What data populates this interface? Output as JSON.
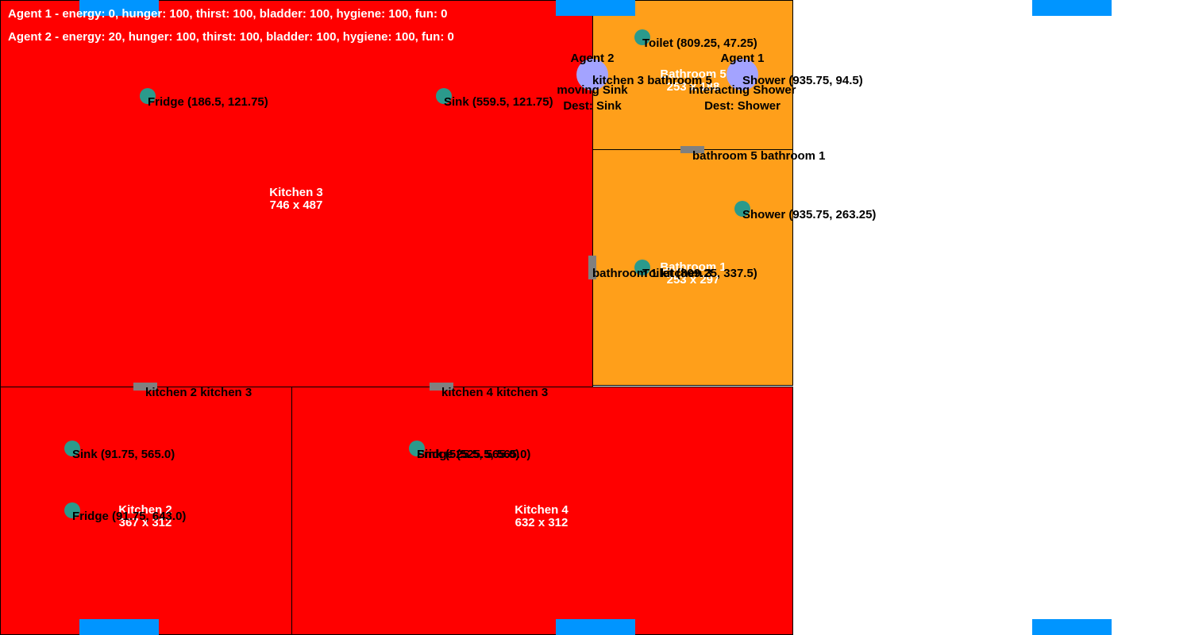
{
  "colors": {
    "kitchen": "#ff0000",
    "bathroom": "#ff9f1a",
    "object": "#2b9a8c",
    "door": "#808080",
    "window": "#0095ff",
    "agent": "#a3a3ff"
  },
  "status": {
    "agent1": "Agent 1 - energy: 0, hunger: 100, thirst: 100, bladder: 100, hygiene: 100, fun: 0",
    "agent2": "Agent 2 - energy: 20, hunger: 100, thirst: 100, bladder: 100, hygiene: 100, fun: 0"
  },
  "rooms": {
    "kitchen3": {
      "name": "Kitchen 3",
      "size": "746 x 487"
    },
    "bathroom5": {
      "name": "Bathroom 5",
      "size": "253 x 188"
    },
    "bathroom1": {
      "name": "Bathroom 1",
      "size": "253 x 297"
    },
    "kitchen2": {
      "name": "Kitchen 2",
      "size": "367 x 312"
    },
    "kitchen4": {
      "name": "Kitchen 4",
      "size": "632 x 312"
    }
  },
  "objects": {
    "fridge_k3": "Fridge (186.5, 121.75)",
    "sink_k3": "Sink (559.5, 121.75)",
    "toilet_b5": "Toilet (809.25, 47.25)",
    "shower_b5": "Shower (935.75, 94.5)",
    "shower_b1": "Shower (935.75, 263.25)",
    "toilet_b1": "Toilet (809.25, 337.5)",
    "sink_k2": "Sink (91.75, 565.0)",
    "fridge_k2": "Fridge (91.75, 643.0)",
    "sink_k4": "Sink (525.5, 565.0)",
    "fridge_k4": "Fridge (525.5, 565.0)"
  },
  "doors": {
    "k3_b5": "kitchen 3 bathroom 5",
    "b5_b1": "bathroom 5 bathroom 1",
    "b1_k3": "bathroom 1 kitchen 3",
    "k2_k3": "kitchen 2 kitchen 3",
    "k4_k3": "kitchen 4 kitchen 3"
  },
  "agents": {
    "agent2": {
      "name": "Agent 2",
      "state": "moving Sink",
      "dest": "Dest: Sink"
    },
    "agent1": {
      "name": "Agent 1",
      "state": "interacting Shower",
      "dest": "Dest: Shower"
    }
  }
}
